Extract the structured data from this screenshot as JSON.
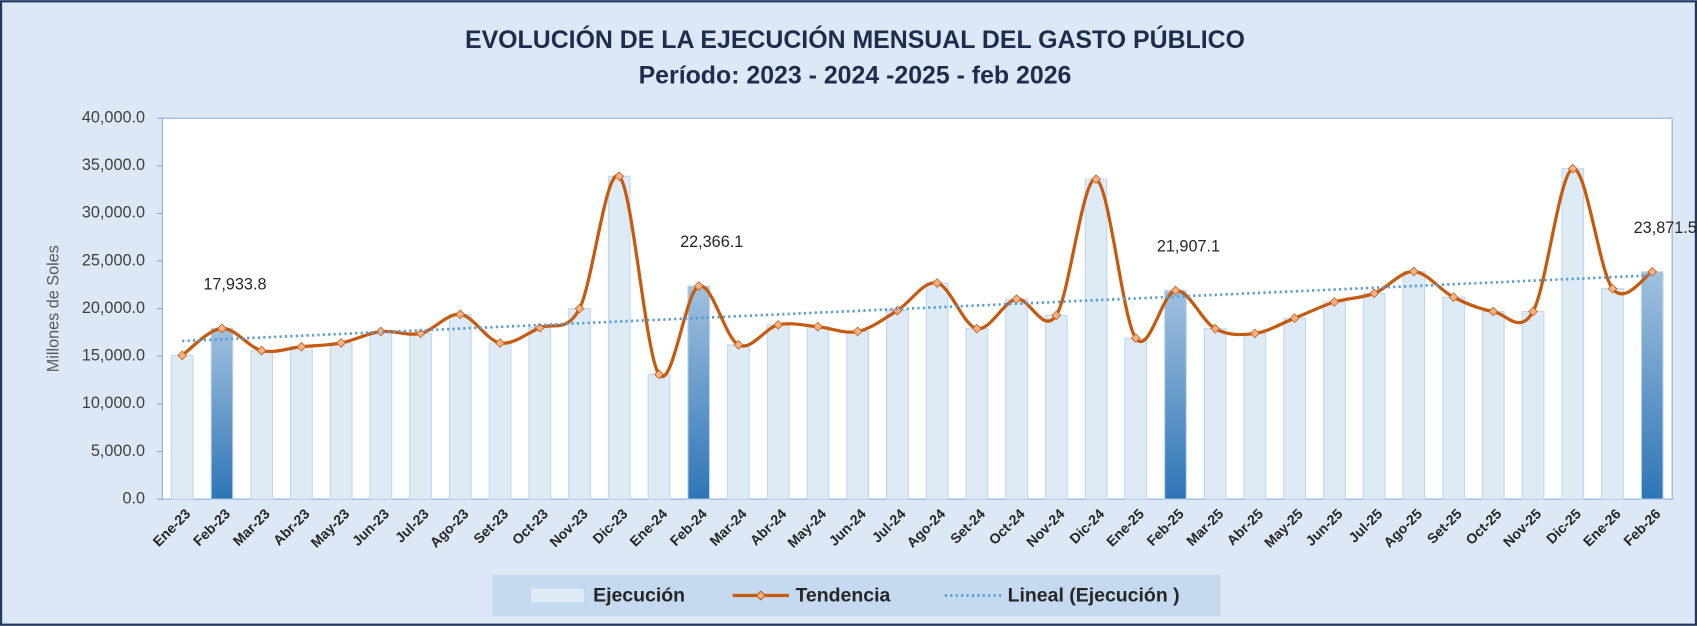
{
  "chart_data": {
    "type": "bar",
    "title": "EVOLUCIÓN DE LA EJECUCIÓN MENSUAL DEL GASTO PÚBLICO",
    "subtitle": "Período: 2023 - 2024 -2025 - feb 2026",
    "y_label": "Millones de Soles",
    "categories": [
      "Ene-23",
      "Feb-23",
      "Mar-23",
      "Abr-23",
      "May-23",
      "Jun-23",
      "Jul-23",
      "Ago-23",
      "Set-23",
      "Oct-23",
      "Nov-23",
      "Dic-23",
      "Ene-24",
      "Feb-24",
      "Mar-24",
      "Abr-24",
      "May-24",
      "Jun-24",
      "Jul-24",
      "Ago-24",
      "Set-24",
      "Oct-24",
      "Nov-24",
      "Dic-24",
      "Ene-25",
      "Feb-25",
      "Mar-25",
      "Abr-25",
      "May-25",
      "Jun-25",
      "Jul-25",
      "Ago-25",
      "Set-25",
      "Oct-25",
      "Nov-25",
      "Dic-25",
      "Ene-26",
      "Feb-26"
    ],
    "series": [
      {
        "name": "Ejecución",
        "type": "bar",
        "color": "#deebf7",
        "colors": [
          "#deebf7",
          "#2e75b6",
          "#deebf7",
          "#deebf7",
          "#deebf7",
          "#deebf7",
          "#deebf7",
          "#deebf7",
          "#deebf7",
          "#deebf7",
          "#deebf7",
          "#deebf7",
          "#deebf7",
          "#2e75b6",
          "#deebf7",
          "#deebf7",
          "#deebf7",
          "#deebf7",
          "#deebf7",
          "#deebf7",
          "#deebf7",
          "#deebf7",
          "#deebf7",
          "#deebf7",
          "#deebf7",
          "#2e75b6",
          "#deebf7",
          "#deebf7",
          "#deebf7",
          "#deebf7",
          "#deebf7",
          "#deebf7",
          "#deebf7",
          "#deebf7",
          "#deebf7",
          "#deebf7",
          "#deebf7",
          "#2e75b6"
        ],
        "values": [
          15100,
          17933.8,
          15600,
          16000,
          16400,
          17600,
          17400,
          19400,
          16400,
          18000,
          20000,
          33900,
          13100,
          22366.1,
          16200,
          18300,
          18100,
          17600,
          19800,
          22700,
          17900,
          21000,
          19300,
          33600,
          16900,
          21907.1,
          17900,
          17400,
          19000,
          20700,
          21600,
          23900,
          21200,
          19700,
          19700,
          34700,
          22100,
          23871.5
        ],
        "value_labels": [
          null,
          "17,933.8",
          null,
          null,
          null,
          null,
          null,
          null,
          null,
          null,
          null,
          null,
          null,
          "22,366.1",
          null,
          null,
          null,
          null,
          null,
          null,
          null,
          null,
          null,
          null,
          null,
          "21,907.1",
          null,
          null,
          null,
          null,
          null,
          null,
          null,
          null,
          null,
          null,
          null,
          "23,871.5"
        ]
      },
      {
        "name": "Tendencia",
        "type": "line",
        "color": "#c55a11",
        "marker_color": "#f4b183",
        "values": [
          15100,
          17933.8,
          15600,
          16000,
          16400,
          17600,
          17400,
          19400,
          16400,
          18000,
          20000,
          33900,
          13100,
          22366.1,
          16200,
          18300,
          18100,
          17600,
          19800,
          22700,
          17900,
          21000,
          19300,
          33600,
          16900,
          21907.1,
          17900,
          17400,
          19000,
          20700,
          21600,
          23900,
          21200,
          19700,
          19700,
          34700,
          22100,
          23871.5
        ]
      },
      {
        "name": "Lineal (Ejecución )",
        "type": "trendline",
        "color": "#5b9bd5",
        "x": [
          "Ene-23",
          "Feb-26"
        ],
        "values": [
          16600,
          23500
        ]
      }
    ],
    "ylim": [
      0,
      40000
    ],
    "yticks": [
      {
        "value": 0,
        "label": "0.0"
      },
      {
        "value": 5000,
        "label": "5,000.0"
      },
      {
        "value": 10000,
        "label": "10,000.0"
      },
      {
        "value": 15000,
        "label": "15,000.0"
      },
      {
        "value": 20000,
        "label": "20,000.0"
      },
      {
        "value": 25000,
        "label": "25,000.0"
      },
      {
        "value": 30000,
        "label": "30,000.0"
      },
      {
        "value": 35000,
        "label": "35,000.0"
      },
      {
        "value": 40000,
        "label": "40,000.0"
      }
    ],
    "legend": "bottom"
  }
}
